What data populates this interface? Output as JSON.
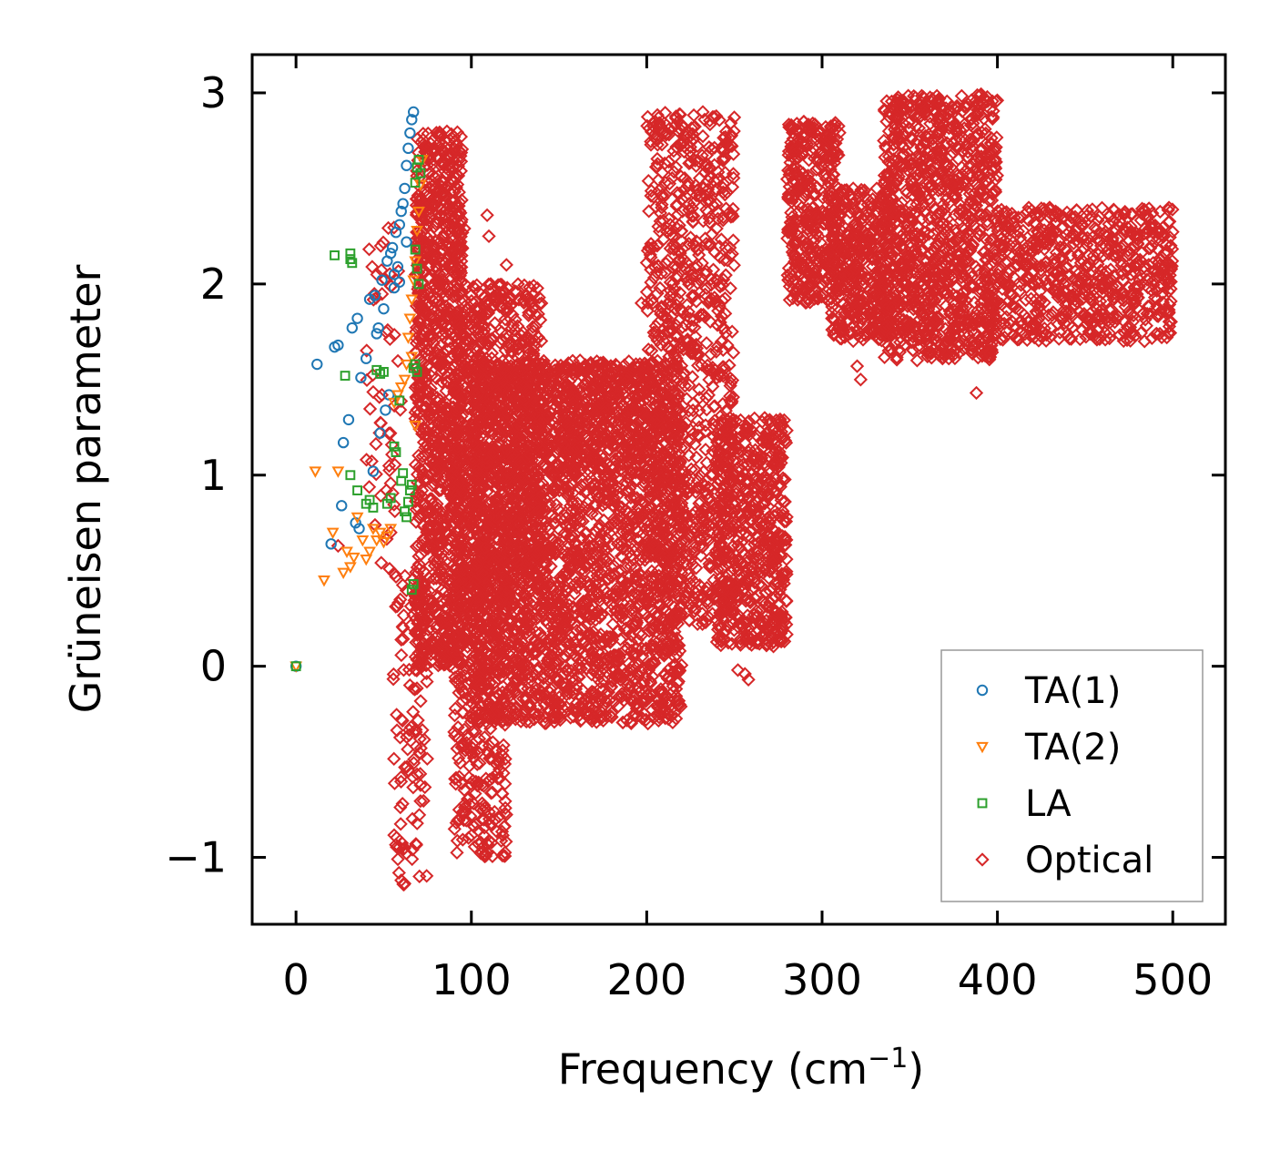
{
  "chart_data": {
    "type": "scatter",
    "title": "",
    "xlabel": "Frequency (cm",
    "xlabel_sup": "−1",
    "xlabel_close": ")",
    "ylabel": "Grüneisen parameter",
    "xlim": [
      -25,
      530
    ],
    "ylim": [
      -1.35,
      3.2
    ],
    "xticks": [
      0,
      100,
      200,
      300,
      400,
      500
    ],
    "xtick_labels": [
      "0",
      "100",
      "200",
      "300",
      "400",
      "500"
    ],
    "yticks": [
      -1,
      0,
      1,
      2,
      3
    ],
    "ytick_labels": [
      "−1",
      "0",
      "1",
      "2",
      "3"
    ],
    "grid": false,
    "legend_position": "lower-right",
    "series": [
      {
        "name": "TA(1)",
        "marker": "circle",
        "color": "#1f77b4",
        "points": [
          [
            0,
            0
          ],
          [
            12,
            1.58
          ],
          [
            20,
            0.64
          ],
          [
            22,
            1.67
          ],
          [
            24,
            1.68
          ],
          [
            26,
            0.84
          ],
          [
            27,
            1.17
          ],
          [
            30,
            1.29
          ],
          [
            32,
            1.77
          ],
          [
            34,
            0.75
          ],
          [
            35,
            1.82
          ],
          [
            36,
            0.72
          ],
          [
            37,
            1.51
          ],
          [
            40,
            1.61
          ],
          [
            42,
            1.92
          ],
          [
            44,
            1.02
          ],
          [
            45,
            1.94
          ],
          [
            46,
            1.74
          ],
          [
            47,
            1.77
          ],
          [
            48,
            1.22
          ],
          [
            49,
            2.02
          ],
          [
            50,
            1.87
          ],
          [
            51,
            1.34
          ],
          [
            52,
            2.12
          ],
          [
            53,
            1.42
          ],
          [
            54,
            2.16
          ],
          [
            55,
            2.19
          ],
          [
            56,
            2.05
          ],
          [
            57,
            2.27
          ],
          [
            58,
            2.09
          ],
          [
            59,
            2.31
          ],
          [
            60,
            2.38
          ],
          [
            61,
            2.42
          ],
          [
            62,
            2.5
          ],
          [
            63,
            2.62
          ],
          [
            64,
            2.71
          ],
          [
            65,
            2.79
          ],
          [
            66,
            2.86
          ],
          [
            67,
            2.9
          ],
          [
            63,
            2.22
          ],
          [
            59,
            2.01
          ],
          [
            56,
            1.98
          ]
        ]
      },
      {
        "name": "TA(2)",
        "marker": "triangle-down",
        "color": "#ff7f0e",
        "points": [
          [
            0,
            0
          ],
          [
            11,
            1.02
          ],
          [
            16,
            0.45
          ],
          [
            21,
            0.7
          ],
          [
            24,
            1.02
          ],
          [
            27,
            0.49
          ],
          [
            29,
            0.6
          ],
          [
            31,
            0.52
          ],
          [
            33,
            0.57
          ],
          [
            35,
            0.78
          ],
          [
            38,
            0.66
          ],
          [
            40,
            0.56
          ],
          [
            42,
            0.6
          ],
          [
            44,
            0.72
          ],
          [
            46,
            0.66
          ],
          [
            48,
            0.7
          ],
          [
            50,
            0.65
          ],
          [
            52,
            0.68
          ],
          [
            54,
            0.72
          ],
          [
            56,
            1.38
          ],
          [
            58,
            1.42
          ],
          [
            60,
            1.46
          ],
          [
            62,
            1.5
          ],
          [
            63,
            1.58
          ],
          [
            64,
            1.72
          ],
          [
            65,
            1.82
          ],
          [
            66,
            1.92
          ],
          [
            67,
            2.02
          ],
          [
            68,
            2.12
          ],
          [
            69,
            2.28
          ],
          [
            70,
            2.38
          ],
          [
            71,
            2.52
          ],
          [
            72,
            2.65
          ],
          [
            68,
            1.26
          ],
          [
            66,
            1.62
          ]
        ]
      },
      {
        "name": "LA",
        "marker": "square",
        "color": "#2ca02c",
        "points": [
          [
            0,
            0
          ],
          [
            22,
            2.15
          ],
          [
            31,
            2.13
          ],
          [
            31,
            2.16
          ],
          [
            32,
            2.11
          ],
          [
            28,
            1.52
          ],
          [
            31,
            1.0
          ],
          [
            35,
            0.92
          ],
          [
            40,
            0.85
          ],
          [
            42,
            0.87
          ],
          [
            44,
            0.83
          ],
          [
            46,
            1.55
          ],
          [
            48,
            1.53
          ],
          [
            50,
            1.54
          ],
          [
            52,
            0.85
          ],
          [
            54,
            0.88
          ],
          [
            56,
            1.15
          ],
          [
            57,
            1.12
          ],
          [
            59,
            1.39
          ],
          [
            60,
            0.97
          ],
          [
            61,
            1.01
          ],
          [
            62,
            0.81
          ],
          [
            63,
            0.78
          ],
          [
            64,
            0.86
          ],
          [
            65,
            0.92
          ],
          [
            66,
            0.95
          ],
          [
            67,
            1.56
          ],
          [
            68,
            1.58
          ],
          [
            69,
            1.54
          ],
          [
            66,
            0.4
          ],
          [
            67,
            0.43
          ],
          [
            68,
            2.53
          ],
          [
            69,
            2.61
          ],
          [
            70,
            2.65
          ],
          [
            71,
            2.58
          ],
          [
            68,
            2.18
          ],
          [
            69,
            2.08
          ],
          [
            70,
            2.0
          ]
        ]
      },
      {
        "name": "Optical",
        "marker": "diamond",
        "color": "#d62728",
        "clusters": [
          {
            "x_range": [
              40,
              60
            ],
            "y_range": [
              0.5,
              2.3
            ],
            "n": 60
          },
          {
            "x_range": [
              55,
              75
            ],
            "y_range": [
              -1.15,
              0.5
            ],
            "n": 110
          },
          {
            "x_range": [
              68,
              95
            ],
            "y_range": [
              0.0,
              2.8
            ],
            "n": 1100
          },
          {
            "x_range": [
              90,
              120
            ],
            "y_range": [
              -1.0,
              0.5
            ],
            "n": 350
          },
          {
            "x_range": [
              90,
              140
            ],
            "y_range": [
              0.4,
              2.0
            ],
            "n": 900
          },
          {
            "x_range": [
              100,
              220
            ],
            "y_range": [
              -0.3,
              1.6
            ],
            "n": 2600
          },
          {
            "x_range": [
              140,
              200
            ],
            "y_range": [
              1.0,
              1.6
            ],
            "n": 240
          },
          {
            "x_range": [
              200,
              250
            ],
            "y_range": [
              0.2,
              2.9
            ],
            "n": 900
          },
          {
            "x_range": [
              240,
              280
            ],
            "y_range": [
              0.1,
              1.3
            ],
            "n": 600
          },
          {
            "x_range": [
              280,
              310
            ],
            "y_range": [
              1.9,
              2.85
            ],
            "n": 400
          },
          {
            "x_range": [
              305,
              340
            ],
            "y_range": [
              1.7,
              2.5
            ],
            "n": 400
          },
          {
            "x_range": [
              335,
              400
            ],
            "y_range": [
              1.6,
              3.0
            ],
            "n": 1100
          },
          {
            "x_range": [
              400,
              500
            ],
            "y_range": [
              1.7,
              2.4
            ],
            "n": 700
          }
        ],
        "outliers": [
          [
            93,
            2.48
          ],
          [
            96,
            2.29
          ],
          [
            109,
            2.36
          ],
          [
            110,
            2.25
          ],
          [
            111,
            2.0
          ],
          [
            120,
            2.1
          ],
          [
            130,
            1.7
          ],
          [
            162,
            1.6
          ],
          [
            170,
            1.45
          ],
          [
            197,
            1.9
          ],
          [
            218,
            2.85
          ],
          [
            219,
            2.81
          ],
          [
            232,
            2.9
          ],
          [
            233,
            2.86
          ],
          [
            320,
            1.57
          ],
          [
            322,
            1.5
          ],
          [
            388,
            1.43
          ],
          [
            402,
            2.21
          ],
          [
            420,
            2.0
          ],
          [
            459,
            2.03
          ],
          [
            252,
            -0.02
          ],
          [
            258,
            -0.07
          ],
          [
            256,
            -0.04
          ],
          [
            60,
            -1.12
          ],
          [
            62,
            -0.95
          ],
          [
            63,
            -0.98
          ],
          [
            112,
            -0.66
          ],
          [
            116,
            -0.54
          ],
          [
            24,
            0.63
          ]
        ]
      }
    ]
  }
}
